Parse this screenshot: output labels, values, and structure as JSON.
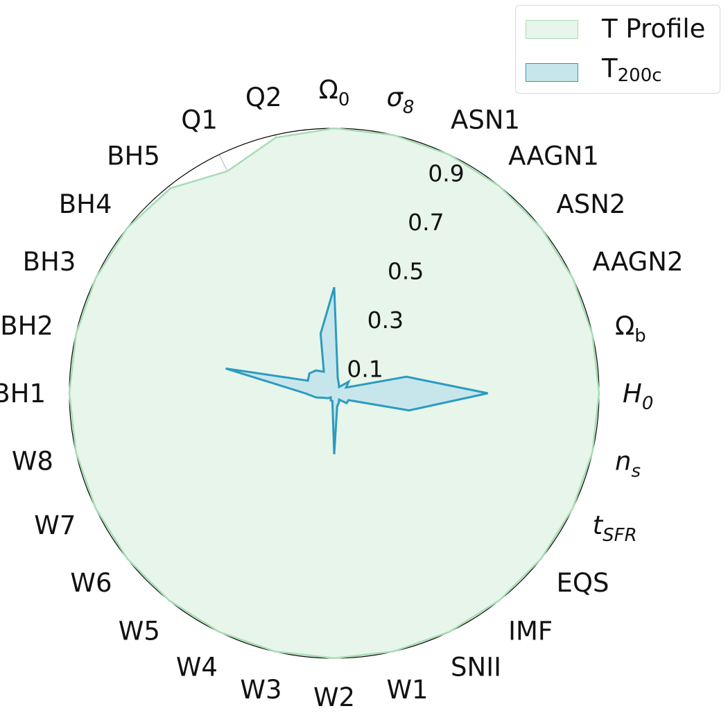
{
  "chart_data": {
    "type": "radar",
    "axes": [
      {
        "label": "Ω",
        "sub": "0",
        "style": "normal"
      },
      {
        "label": "σ",
        "sub": "8",
        "style": "italic"
      },
      {
        "label": "ASN1",
        "sub": "",
        "style": "normal"
      },
      {
        "label": "AAGN1",
        "sub": "",
        "style": "normal"
      },
      {
        "label": "ASN2",
        "sub": "",
        "style": "normal"
      },
      {
        "label": "AAGN2",
        "sub": "",
        "style": "normal"
      },
      {
        "label": "Ω",
        "sub": "b",
        "style": "normal"
      },
      {
        "label": "H",
        "sub": "0",
        "style": "italic"
      },
      {
        "label": "n",
        "sub": "s",
        "style": "italic"
      },
      {
        "label": "t",
        "sub": "SFR",
        "style": "italic"
      },
      {
        "label": "EQS",
        "sub": "",
        "style": "normal"
      },
      {
        "label": "IMF",
        "sub": "",
        "style": "normal"
      },
      {
        "label": "SNII",
        "sub": "",
        "style": "normal"
      },
      {
        "label": "W1",
        "sub": "",
        "style": "normal"
      },
      {
        "label": "W2",
        "sub": "",
        "style": "normal"
      },
      {
        "label": "W3",
        "sub": "",
        "style": "normal"
      },
      {
        "label": "W4",
        "sub": "",
        "style": "normal"
      },
      {
        "label": "W5",
        "sub": "",
        "style": "normal"
      },
      {
        "label": "W6",
        "sub": "",
        "style": "normal"
      },
      {
        "label": "W7",
        "sub": "",
        "style": "normal"
      },
      {
        "label": "W8",
        "sub": "",
        "style": "normal"
      },
      {
        "label": "BH1",
        "sub": "",
        "style": "normal"
      },
      {
        "label": "BH2",
        "sub": "",
        "style": "normal"
      },
      {
        "label": "BH3",
        "sub": "",
        "style": "normal"
      },
      {
        "label": "BH4",
        "sub": "",
        "style": "normal"
      },
      {
        "label": "BH5",
        "sub": "",
        "style": "normal"
      },
      {
        "label": "Q1",
        "sub": "",
        "style": "normal"
      },
      {
        "label": "Q2",
        "sub": "",
        "style": "normal"
      }
    ],
    "rlim": [
      0,
      1
    ],
    "radial_ticks": [
      0.1,
      0.3,
      0.5,
      0.7,
      0.9
    ],
    "radial_tick_labels": [
      "0.1",
      "0.3",
      "0.5",
      "0.7",
      "0.9"
    ],
    "radial_grid_step": 0.1,
    "grid": true,
    "legend_position": "top-right",
    "series": [
      {
        "name": "T Profile",
        "name_sub": "",
        "fill": "#e8f5ea",
        "stroke": "#a8dcb5",
        "values": [
          1.0,
          1.0,
          1.0,
          1.0,
          1.0,
          1.0,
          1.0,
          1.0,
          1.0,
          1.0,
          1.0,
          1.0,
          1.0,
          1.0,
          1.0,
          1.0,
          1.0,
          1.0,
          1.0,
          1.0,
          1.0,
          1.0,
          1.0,
          1.0,
          1.0,
          0.99,
          0.93,
          0.99
        ]
      },
      {
        "name": "T",
        "name_sub": "200c",
        "fill": "#c7e6ec",
        "stroke": "#2b9bc0",
        "values": [
          0.4,
          0.06,
          0.04,
          0.03,
          0.07,
          0.05,
          0.28,
          0.58,
          0.29,
          0.06,
          0.06,
          0.03,
          0.04,
          0.05,
          0.23,
          0.03,
          0.03,
          0.02,
          0.03,
          0.04,
          0.07,
          0.11,
          0.42,
          0.11,
          0.12,
          0.11,
          0.09,
          0.23
        ]
      }
    ]
  }
}
